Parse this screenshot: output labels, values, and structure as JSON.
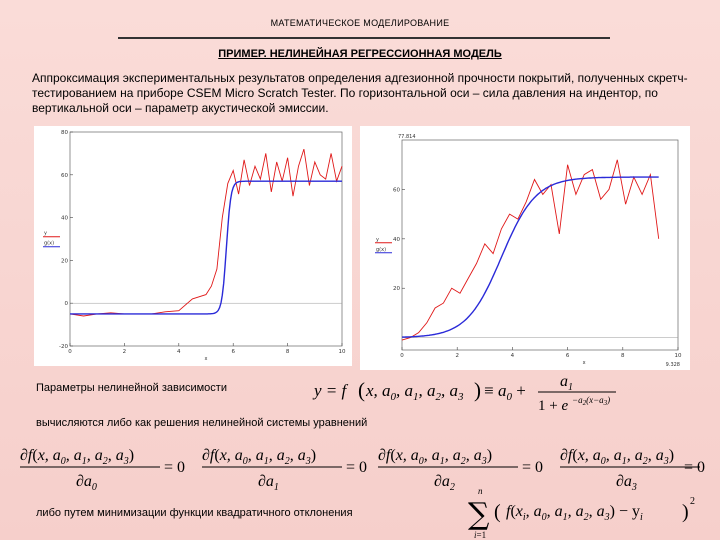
{
  "header": "МАТЕМАТИЧЕСКОЕ МОДЕЛИРОВАНИЕ",
  "title": "ПРИМЕР. НЕЛИНЕЙНАЯ РЕГРЕССИОННАЯ МОДЕЛЬ",
  "intro": "Аппроксимация экспериментальных результатов определения адгезионной прочности покрытий, полученных скретч-тестированием на приборе CSEM Micro Scratch Tester. По горизонтальной оси – сила давления на индентор, по вертикальной оси – параметр акустической эмиссии.",
  "text_params": "Параметры нелинейной зависимости",
  "text_solve": "вычисляются либо как решения нелинейной системы уравнений",
  "text_min": "либо путем минимизации функции квадратичного отклонения",
  "colors": {
    "data": "#e01818",
    "fit": "#2a2ad8"
  },
  "chart_data": [
    {
      "type": "line",
      "ylabel_top": "y",
      "ylabel_bottom": "g(x)",
      "xlabel": "x",
      "xticks": [
        "0",
        "2",
        "4",
        "6",
        "8",
        "10"
      ],
      "yticks": [
        "-20",
        "0",
        "20",
        "40",
        "60",
        "80"
      ],
      "xlim": [
        0,
        10
      ],
      "ylim": [
        -20,
        80
      ],
      "fit": {
        "a0": -5,
        "a1": 62,
        "a2": 12,
        "a3": 5.75
      },
      "measured_x": [
        0.0,
        0.5,
        1.0,
        1.5,
        2.0,
        2.5,
        3.0,
        3.5,
        4.0,
        4.5,
        5.0,
        5.2,
        5.4,
        5.6,
        5.8,
        6.0,
        6.2,
        6.4,
        6.6,
        6.8,
        7.0,
        7.2,
        7.4,
        7.6,
        7.8,
        8.0,
        8.2,
        8.4,
        8.6,
        8.8,
        9.0,
        9.2,
        9.4,
        9.6,
        9.8,
        10.0
      ],
      "measured_y": [
        -5,
        -6,
        -5,
        -4.5,
        -5,
        -5,
        -5,
        -4,
        -3.5,
        2,
        4,
        8,
        16,
        40,
        56,
        62,
        51,
        67,
        55,
        64,
        58,
        70,
        52,
        66,
        57,
        68,
        50,
        64,
        72,
        55,
        66,
        60,
        58,
        70,
        57,
        64
      ]
    },
    {
      "type": "line",
      "ylabel_top": "y",
      "ylabel_bottom": "g(x)",
      "xlabel": "x",
      "top_value": "77.814",
      "right_value": "9.328",
      "xticks": [
        "0",
        "2",
        "4",
        "6",
        "8",
        "10"
      ],
      "yticks": [
        "20",
        "40",
        "60"
      ],
      "xlim": [
        0,
        10
      ],
      "ylim": [
        -5,
        80
      ],
      "fit": {
        "a0": 0,
        "a1": 65,
        "a2": 1.6,
        "a3": 3.6
      },
      "measured_x": [
        0.0,
        0.3,
        0.6,
        0.9,
        1.2,
        1.5,
        1.8,
        2.1,
        2.4,
        2.7,
        3.0,
        3.3,
        3.6,
        3.9,
        4.2,
        4.5,
        4.8,
        5.1,
        5.4,
        5.7,
        6.0,
        6.3,
        6.6,
        6.9,
        7.2,
        7.5,
        7.8,
        8.1,
        8.4,
        8.7,
        9.0,
        9.3
      ],
      "measured_y": [
        -1,
        0,
        2,
        6,
        12,
        14,
        20,
        18,
        24,
        30,
        38,
        34,
        44,
        50,
        48,
        55,
        64,
        58,
        62,
        42,
        70,
        58,
        66,
        68,
        56,
        60,
        72,
        54,
        65,
        58,
        66,
        40
      ]
    }
  ]
}
